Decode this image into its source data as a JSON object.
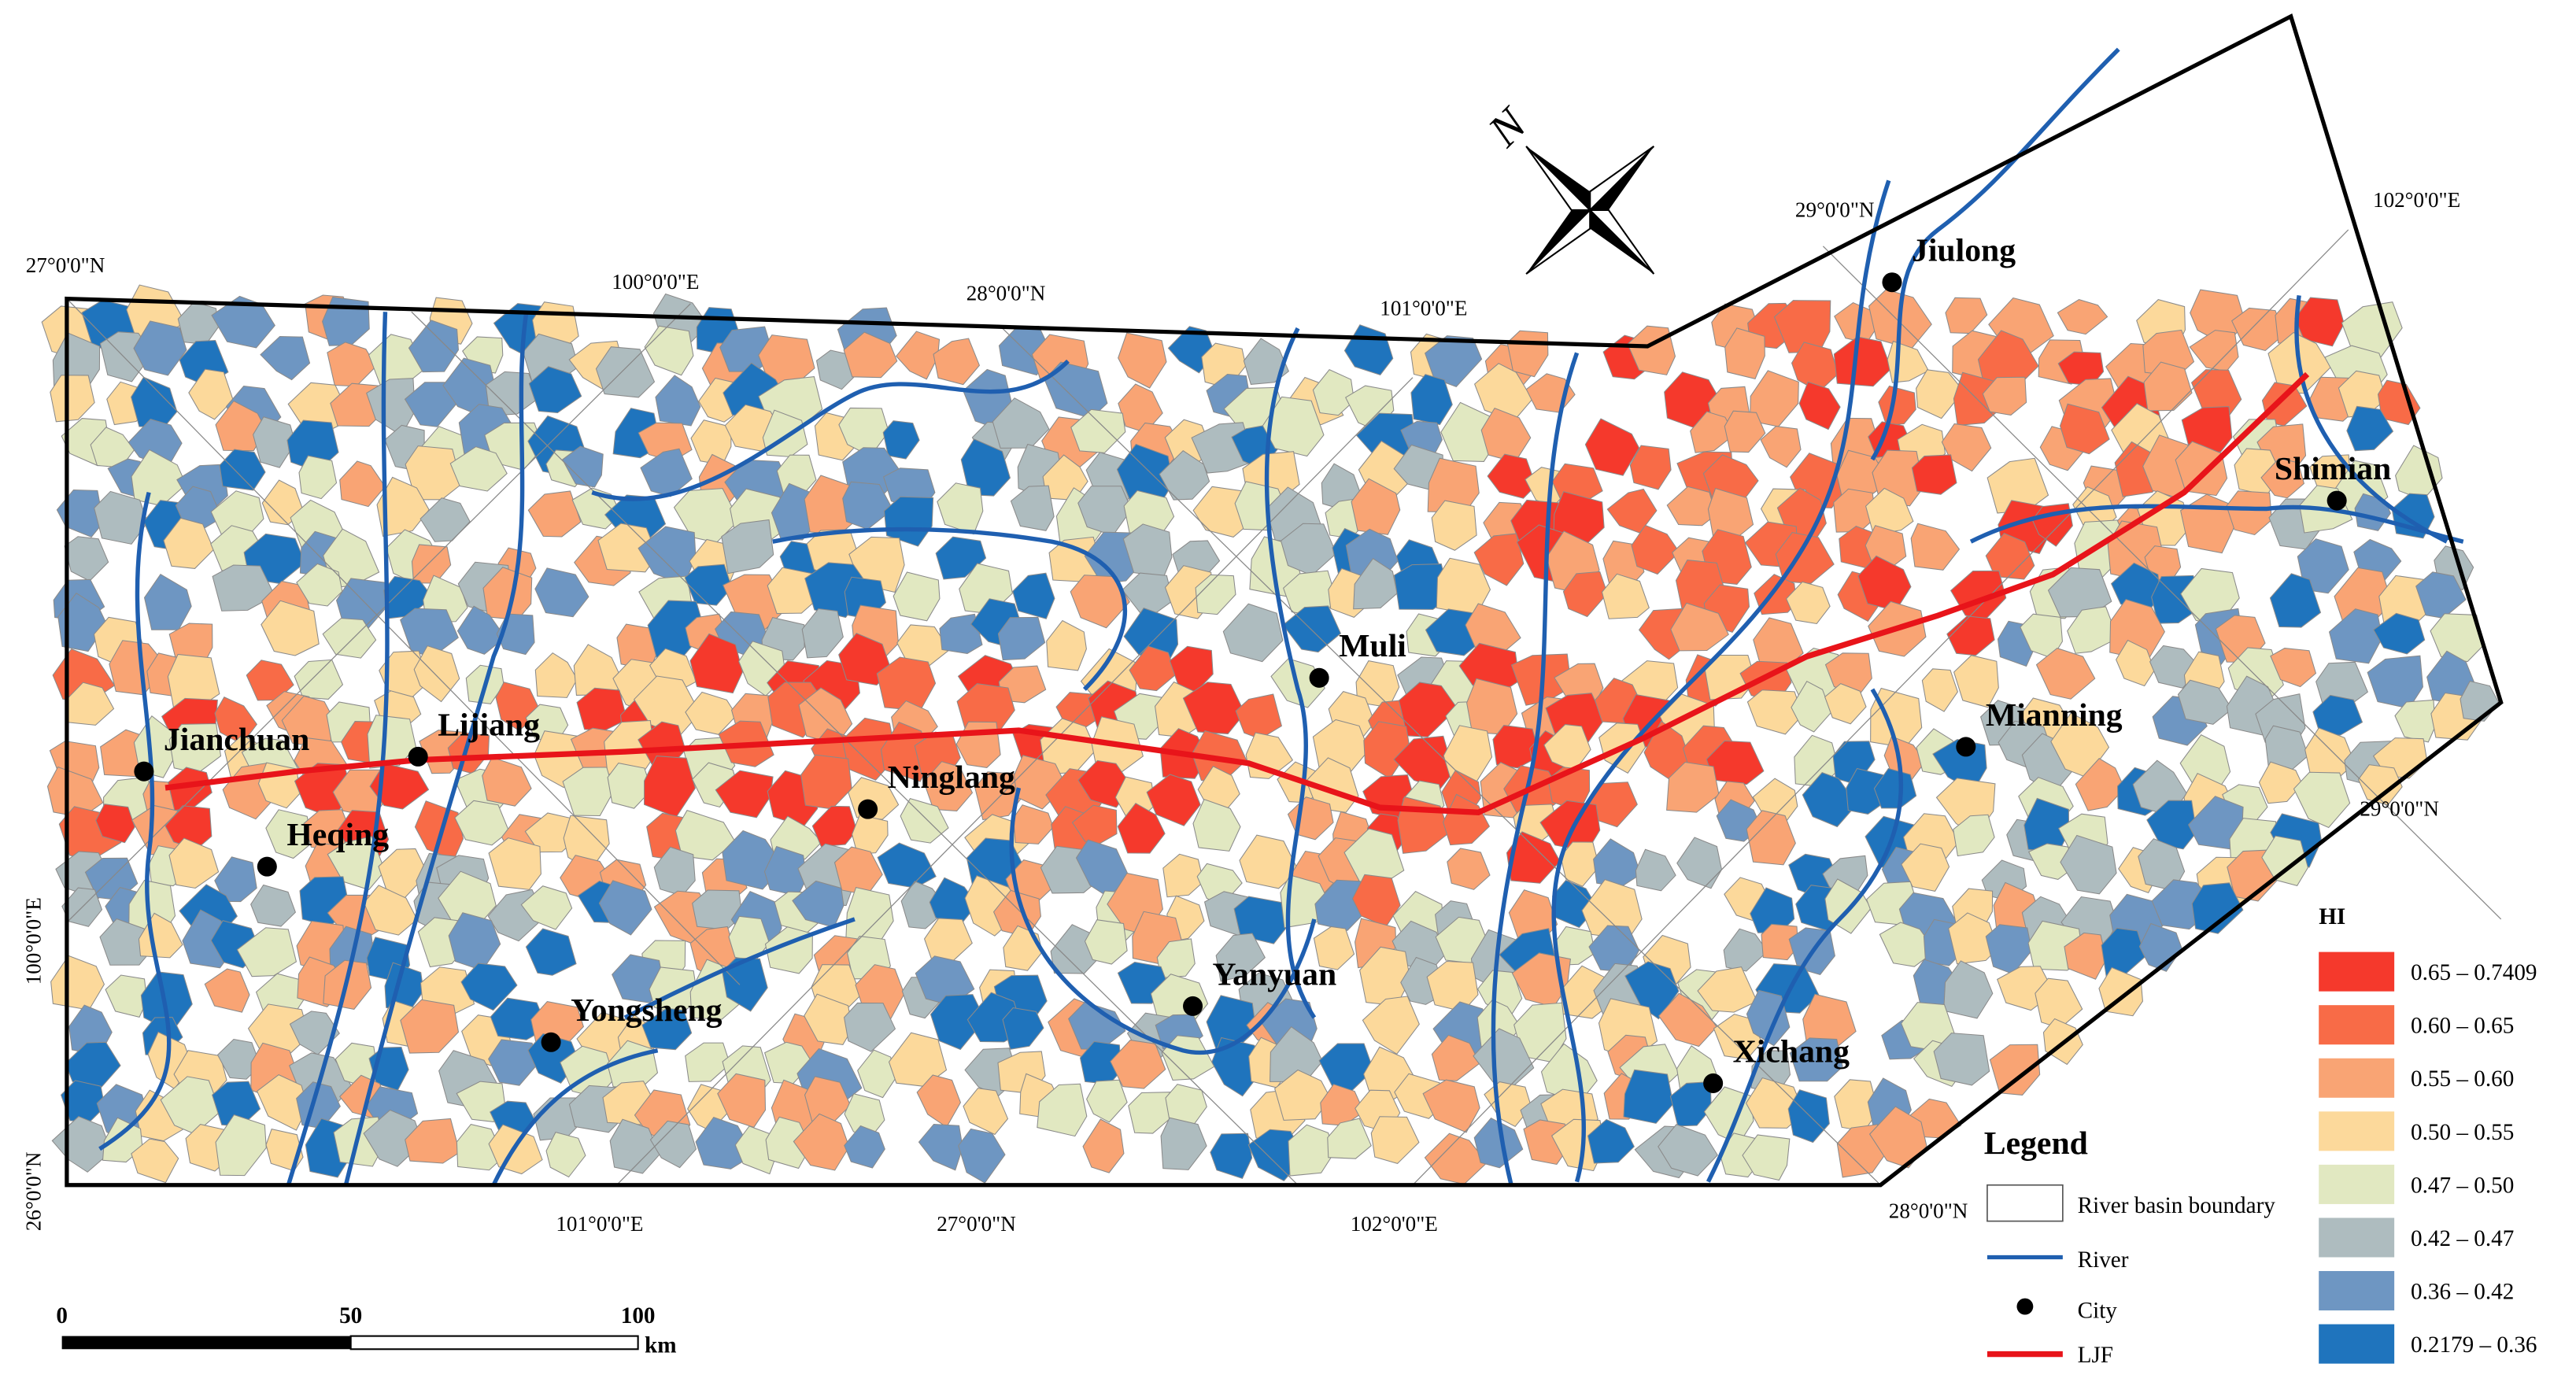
{
  "map": {
    "north_label": "N",
    "graticule_labels": [
      "27°0'0\"N",
      "100°0'0\"E",
      "28°0'0\"N",
      "101°0'0\"E",
      "29°0'0\"N",
      "102°0'0\"E",
      "29°0'0\"N",
      "100°0'0\"E",
      "26°0'0\"N",
      "101°0'0\"E",
      "27°0'0\"N",
      "102°0'0\"E",
      "28°0'0\"N"
    ],
    "cities": [
      "Jianchuan",
      "Lijiang",
      "Heqing",
      "Ninglang",
      "Muli",
      "Yanyuan",
      "Yongsheng",
      "Xichang",
      "Mianning",
      "Shimian",
      "Jiulong"
    ],
    "legend": {
      "title": "Legend",
      "items": [
        "River basin boundary",
        "River",
        "City",
        "LJF"
      ]
    },
    "hi_legend": {
      "title": "HI",
      "classes": [
        {
          "label": "0.65 – 0.7409",
          "color": "#f5392c"
        },
        {
          "label": "0.60 – 0.65",
          "color": "#f86b47"
        },
        {
          "label": "0.55 – 0.60",
          "color": "#f9a474"
        },
        {
          "label": "0.50 – 0.55",
          "color": "#fcd99b"
        },
        {
          "label": "0.47 – 0.50",
          "color": "#e1e8c1"
        },
        {
          "label": "0.42 – 0.47",
          "color": "#aebcbf"
        },
        {
          "label": "0.36 – 0.42",
          "color": "#6e96c2"
        },
        {
          "label": "0.2179 – 0.36",
          "color": "#1f74bd"
        }
      ]
    },
    "scale_bar": {
      "labels": [
        "0",
        "50",
        "100"
      ],
      "unit": "km"
    }
  }
}
